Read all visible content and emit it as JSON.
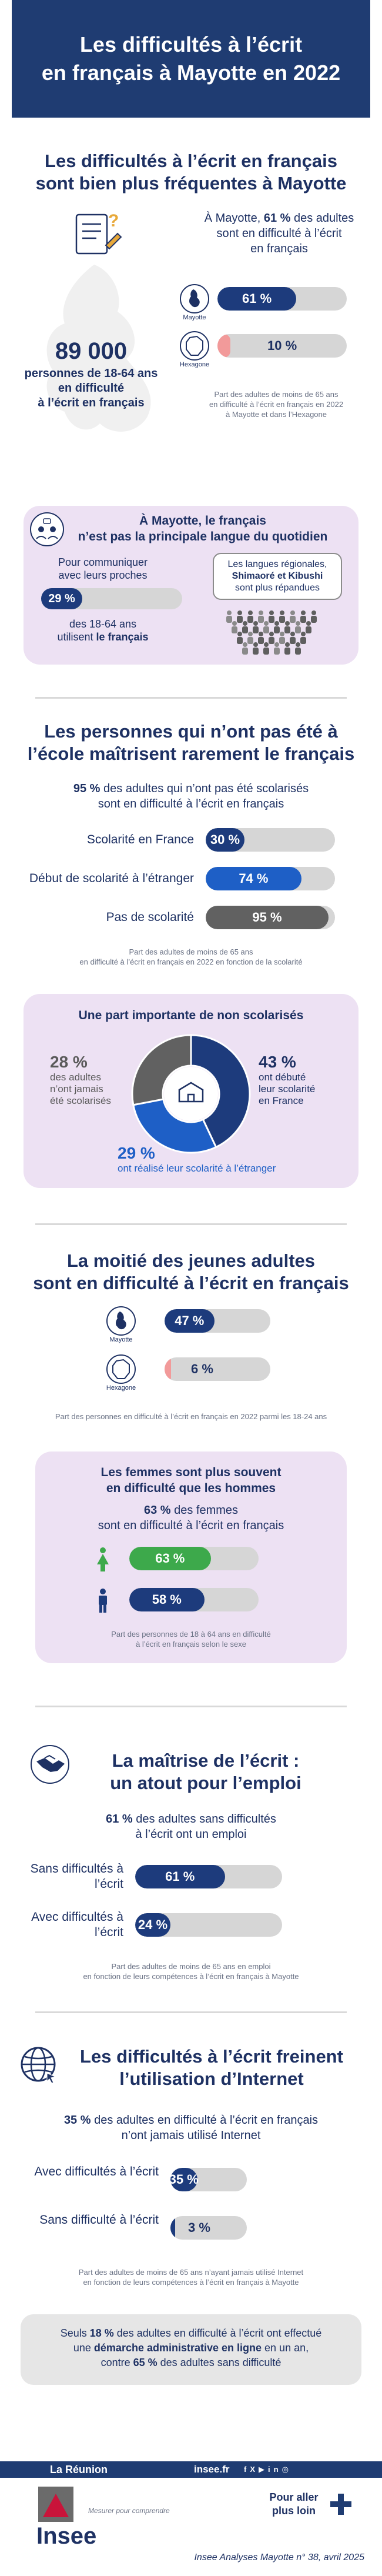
{
  "header": {
    "title_line1": "Les difficultés à l’écrit",
    "title_line2": "en français à Mayotte en 2022"
  },
  "section1": {
    "heading_line1": "Les difficultés à l’écrit en français",
    "heading_line2": "sont bien plus fréquentes à Mayotte",
    "intro_line1_pre": "À Mayotte, ",
    "intro_line1_bold": "61 %",
    "intro_line1_post": " des adultes",
    "intro_line2": "sont en difficulté à l’écrit",
    "intro_line3": "en français",
    "big_number": "89 000",
    "big_number_caption_line1": "personnes de 18-64 ans",
    "big_number_caption_line2": "en difficulté",
    "big_number_caption_line3": "à l’écrit en français",
    "note_line1": "Part des adultes de moins de 65 ans",
    "note_line2": "en difficulté à l’écrit en français en 2022",
    "note_line3": "à Mayotte et dans l’Hexagone"
  },
  "section2": {
    "heading_line1": "À Mayotte, le français",
    "heading_line2": "n’est pas la principale langue du quotidien",
    "left_line1": "Pour communiquer",
    "left_line2": "avec leurs proches",
    "pct": "29 %",
    "left_line3": "des 18-64 ans",
    "left_line4_pre": "utilisent ",
    "left_line4_bold": "le français",
    "bubble_line1": "Les langues régionales,",
    "bubble_line2": "Shimaoré et Kibushi",
    "bubble_line3": "sont plus répandues"
  },
  "section3": {
    "heading_line1": "Les personnes qui n’ont pas été à",
    "heading_line2": "l’école maîtrisent rarement le français",
    "intro_line1_bold": "95 %",
    "intro_line1_post": " des adultes qui n’ont pas été scolarisés",
    "intro_line2": "sont en difficulté à l’écrit en français",
    "note_line1": "Part des adultes de moins de 65 ans",
    "note_line2": "en difficulté à l’écrit en français en 2022 en fonction de la scolarité"
  },
  "section4": {
    "heading": "Une part importante de non scolarisés",
    "left_pct": "28 %",
    "left_line1": "des adultes",
    "left_line2": "n’ont jamais",
    "left_line3": "été scolarisés",
    "right_pct": "43 %",
    "right_line1": "ont débuté",
    "right_line2": "leur scolarité",
    "right_line3": "en France",
    "bottom_pct": "29 %",
    "bottom_line": "ont réalisé leur scolarité à l’étranger"
  },
  "section5": {
    "heading_line1": "La moitié des jeunes adultes",
    "heading_line2": "sont en difficulté à l’écrit en français",
    "note": "Part des personnes en difficulté à l’écrit en français en 2022 parmi les 18-24 ans"
  },
  "section6": {
    "heading_line1": "Les femmes sont plus souvent",
    "heading_line2": "en difficulté que les hommes",
    "intro_line1_bold": "63 %",
    "intro_line1_post": " des femmes",
    "intro_line2": "sont en difficulté à l’écrit en français",
    "note_line1": "Part des personnes de 18 à 64 ans en difficulté",
    "note_line2": "à l’écrit en français selon le sexe"
  },
  "section7": {
    "heading_line1": "La maîtrise de l’écrit :",
    "heading_line2": "un atout pour l’emploi",
    "intro_line1_bold": "61 %",
    "intro_line1_post": " des adultes sans difficultés",
    "intro_line2": "à l’écrit ont un emploi",
    "note_line1": "Part des adultes de moins de 65 ans en emploi",
    "note_line2": "en fonction de leurs compétences à l’écrit en français à Mayotte"
  },
  "section8": {
    "heading_line1": "Les difficultés à l’écrit freinent",
    "heading_line2": "l’utilisation d’Internet",
    "intro_line1_bold": "35 %",
    "intro_line1_post": " des adultes en difficulté à l’écrit en français",
    "intro_line2": "n’ont jamais utilisé Internet",
    "note_line1": "Part des adultes de moins de 65 ans n’ayant jamais utilisé Internet",
    "note_line2": "en fonction de leurs compétences à l’écrit en français à Mayotte",
    "box_line1_pre": "Seuls ",
    "box_line1_bold": "18 %",
    "box_line1_post": " des adultes en difficulté à l’écrit ont effectué",
    "box_line2_pre": "une ",
    "box_line2_bold": "démarche administrative en ligne",
    "box_line2_post": " en un an,",
    "box_line3_pre": "contre ",
    "box_line3_bold": "65 %",
    "box_line3_post": " des adultes sans difficulté"
  },
  "footer": {
    "region": "La Réunion",
    "site": "insee.fr",
    "brand": "Insee",
    "tagline": "Mesurer pour comprendre",
    "more_line1": "Pour aller",
    "more_line2": "plus loin",
    "citation": "Insee Analyses Mayotte n° 38, avril 2025"
  },
  "colors": {
    "navy": "#1f3c72",
    "blue": "#1e5fc6",
    "grey": "#616161",
    "green": "#3da94b",
    "pink": "#f29a9a",
    "panel": "#ede1f3"
  },
  "chart_data": [
    {
      "type": "bar",
      "title": "Part des adultes de moins de 65 ans en difficulté à l’écrit en français en 2022 à Mayotte et dans l’Hexagone",
      "categories": [
        "Mayotte",
        "Hexagone"
      ],
      "values": [
        61,
        10
      ],
      "labels": [
        "61 %",
        "10 %"
      ],
      "unit": "%",
      "ylim": [
        0,
        100
      ]
    },
    {
      "type": "bar",
      "title": "Part des adultes de moins de 65 ans en difficulté à l’écrit en français en 2022 en fonction de la scolarité",
      "categories": [
        "Scolarité en France",
        "Début de scolarité à l’étranger",
        "Pas de scolarité"
      ],
      "values": [
        30,
        74,
        95
      ],
      "labels": [
        "30 %",
        "74 %",
        "95 %"
      ],
      "unit": "%",
      "ylim": [
        0,
        100
      ]
    },
    {
      "type": "pie",
      "title": "Une part importante de non scolarisés",
      "categories": [
        "ont débuté leur scolarité en France",
        "ont réalisé leur scolarité à l’étranger",
        "n’ont jamais été scolarisés"
      ],
      "values": [
        43,
        29,
        28
      ],
      "labels": [
        "43 %",
        "29 %",
        "28 %"
      ]
    },
    {
      "type": "bar",
      "title": "Part des personnes en difficulté à l’écrit en français en 2022 parmi les 18-24 ans",
      "categories": [
        "Mayotte",
        "Hexagone"
      ],
      "values": [
        47,
        6
      ],
      "labels": [
        "47 %",
        "6 %"
      ],
      "unit": "%",
      "ylim": [
        0,
        100
      ]
    },
    {
      "type": "bar",
      "title": "Part des personnes de 18 à 64 ans en difficulté à l’écrit en français selon le sexe",
      "categories": [
        "Femmes",
        "Hommes"
      ],
      "values": [
        63,
        58
      ],
      "labels": [
        "63 %",
        "58 %"
      ],
      "unit": "%",
      "ylim": [
        0,
        100
      ]
    },
    {
      "type": "bar",
      "title": "Part des adultes de moins de 65 ans en emploi en fonction de leurs compétences à l’écrit en français à Mayotte",
      "categories": [
        "Sans difficultés à l’écrit",
        "Avec difficultés à l’écrit"
      ],
      "values": [
        61,
        24
      ],
      "labels": [
        "61 %",
        "24 %"
      ],
      "unit": "%",
      "ylim": [
        0,
        100
      ]
    },
    {
      "type": "bar",
      "title": "Part des adultes de moins de 65 ans n’ayant jamais utilisé Internet en fonction de leurs compétences à l’écrit en français à Mayotte",
      "categories": [
        "Avec difficultés à l’écrit",
        "Sans difficulté à l’écrit"
      ],
      "values": [
        35,
        3
      ],
      "labels": [
        "35 %",
        "3 %"
      ],
      "unit": "%",
      "ylim": [
        0,
        100
      ]
    }
  ]
}
